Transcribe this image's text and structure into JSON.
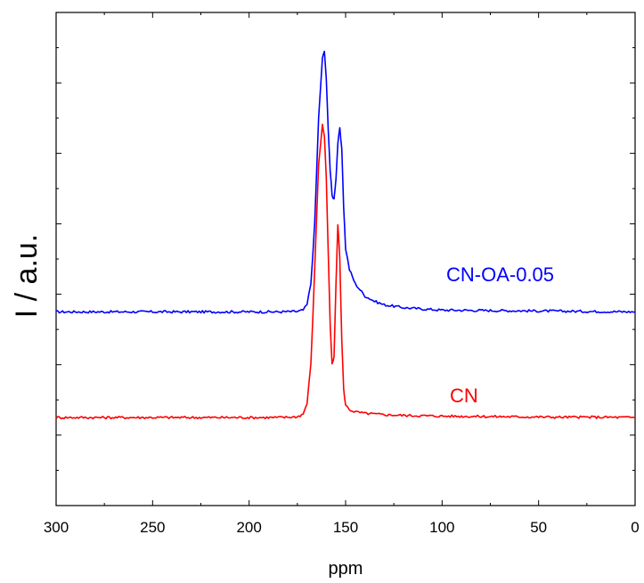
{
  "chart_data": {
    "type": "line",
    "title": "",
    "xlabel": "ppm",
    "ylabel": "I / a.u.",
    "xlim": [
      300,
      0
    ],
    "x_reversed": true,
    "x_ticks": [
      300,
      250,
      200,
      150,
      100,
      50,
      0
    ],
    "y_tick_labels": false,
    "grid": false,
    "legend": "none",
    "series": [
      {
        "name": "CN-OA-0.05",
        "color": "#0000ff",
        "x": [
          300,
          280,
          260,
          240,
          220,
          200,
          185,
          175,
          172,
          170,
          168,
          166,
          164,
          162,
          161,
          160,
          159,
          158,
          157,
          156,
          155,
          154,
          153,
          152,
          151,
          150,
          148,
          145,
          140,
          135,
          130,
          120,
          110,
          100,
          80,
          60,
          40,
          20,
          0
        ],
        "y": [
          0.3,
          0.3,
          0.3,
          0.3,
          0.3,
          0.3,
          0.3,
          0.301,
          0.305,
          0.32,
          0.38,
          0.55,
          0.85,
          1.02,
          1.04,
          0.96,
          0.82,
          0.7,
          0.63,
          0.62,
          0.68,
          0.78,
          0.82,
          0.76,
          0.6,
          0.48,
          0.42,
          0.38,
          0.345,
          0.33,
          0.32,
          0.312,
          0.308,
          0.305,
          0.304,
          0.303,
          0.302,
          0.301,
          0.3
        ]
      },
      {
        "name": "CN",
        "color": "#ff0000",
        "x": [
          300,
          280,
          260,
          240,
          220,
          200,
          185,
          175,
          172,
          170,
          168,
          166,
          164,
          162,
          161,
          160,
          159,
          158,
          157,
          156,
          155,
          154,
          153,
          152,
          151,
          150,
          148,
          145,
          140,
          135,
          130,
          120,
          110,
          100,
          80,
          60,
          40,
          20,
          0
        ],
        "y": [
          0.0,
          0.0,
          0.0,
          0.0,
          0.0,
          0.0,
          0.0,
          0.002,
          0.01,
          0.04,
          0.15,
          0.42,
          0.72,
          0.83,
          0.8,
          0.68,
          0.47,
          0.26,
          0.15,
          0.17,
          0.38,
          0.55,
          0.45,
          0.22,
          0.08,
          0.035,
          0.022,
          0.016,
          0.012,
          0.01,
          0.008,
          0.006,
          0.005,
          0.004,
          0.003,
          0.002,
          0.001,
          0.001,
          0.0
        ]
      }
    ]
  }
}
